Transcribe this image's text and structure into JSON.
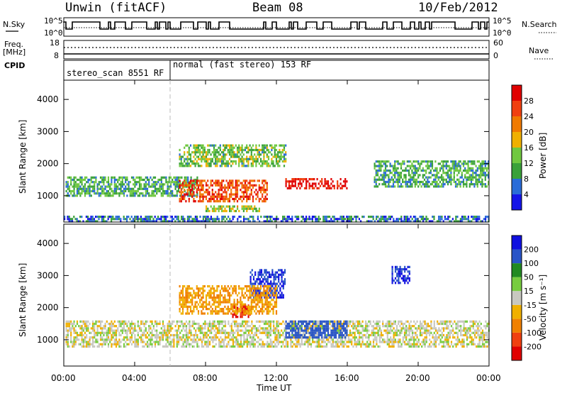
{
  "header": {
    "station": "Unwin (fitACF)",
    "beam": "Beam 08",
    "date": "10/Feb/2012"
  },
  "left_labels": {
    "nsky": "N.Sky",
    "freq": "Freq.",
    "freq_unit": "[MHz]",
    "cpid": "CPID"
  },
  "right_labels": {
    "nsearch": "N.Search",
    "nave": "Nave"
  },
  "cpid_segments": [
    {
      "label": "stereo_scan 8551 RF"
    },
    {
      "label": "normal (fast stereo) 153 RF"
    }
  ],
  "xaxis": {
    "ticks": [
      "00:00",
      "04:00",
      "08:00",
      "12:00",
      "16:00",
      "20:00",
      "00:00"
    ],
    "label": "Time UT"
  },
  "colors": {
    "power_scale": [
      "#1515e8",
      "#2a6cd8",
      "#3aa13a",
      "#70c840",
      "#f0b000",
      "#f07a00",
      "#f04010",
      "#e00000"
    ],
    "velocity_scale": [
      "#1010e0",
      "#2a55c8",
      "#228a22",
      "#78cc40",
      "#c8c8c0",
      "#f0b000",
      "#f08000",
      "#f04010",
      "#e00000"
    ],
    "ground_scatter": "#c0c0b8"
  },
  "chart_data": [
    {
      "type": "line",
      "title": "",
      "series": [
        {
          "name": "N.Sky",
          "range": [
            "10^0",
            "10^5"
          ]
        },
        {
          "name": "N.Search",
          "range": [
            "10^0",
            "10^5"
          ]
        }
      ],
      "left_ticks": [
        "10^5",
        "10^0"
      ],
      "right_ticks": [
        "10^5",
        "10^0"
      ]
    },
    {
      "type": "line",
      "series": [
        {
          "name": "Freq. [MHz]",
          "range": [
            8,
            18
          ],
          "approx_value": 10.5
        },
        {
          "name": "Nave",
          "range": [
            0,
            60
          ],
          "approx_value": 32
        }
      ],
      "left_ticks": [
        "18",
        "8"
      ],
      "right_ticks": [
        "60",
        "0"
      ]
    },
    {
      "type": "heatmap",
      "panel": "power",
      "xlabel": "Time UT",
      "ylabel": "Slant Range [km]",
      "xlim": [
        0,
        24
      ],
      "ylim": [
        180,
        4600
      ],
      "yticks": [
        1000,
        2000,
        3000,
        4000
      ],
      "colorbar": {
        "label": "Power [dB]",
        "ticks": [
          4,
          8,
          12,
          16,
          20,
          24,
          28
        ],
        "range": [
          0,
          30
        ]
      },
      "bands": [
        {
          "t_start": 0.1,
          "t_end": 7.5,
          "range_low": 1000,
          "range_high": 1600,
          "power_db": 10
        },
        {
          "t_start": 6.5,
          "t_end": 11.5,
          "range_low": 850,
          "range_high": 1500,
          "power_db": 24
        },
        {
          "t_start": 12.5,
          "t_end": 16.0,
          "range_low": 1200,
          "range_high": 1550,
          "power_db": 28
        },
        {
          "t_start": 17.5,
          "t_end": 24.0,
          "range_low": 1300,
          "range_high": 2100,
          "power_db": 10
        },
        {
          "t_start": 6.5,
          "t_end": 12.5,
          "range_low": 1900,
          "range_high": 2600,
          "power_db": 12
        },
        {
          "t_start": 8.0,
          "t_end": 11.0,
          "range_low": 500,
          "range_high": 700,
          "power_db": 14
        },
        {
          "t_start": 0.0,
          "t_end": 24.0,
          "range_low": 200,
          "range_high": 380,
          "power_db": 6
        }
      ]
    },
    {
      "type": "heatmap",
      "panel": "velocity",
      "xlabel": "Time UT",
      "ylabel": "Slant Range [km]",
      "xlim": [
        0,
        24
      ],
      "ylim": [
        180,
        4600
      ],
      "yticks": [
        1000,
        2000,
        3000,
        4000
      ],
      "colorbar": {
        "label": "Velocity [m s⁻¹]",
        "ticks": [
          200,
          100,
          50,
          15,
          -15,
          -50,
          -100,
          -200
        ],
        "range": [
          -250,
          250
        ]
      },
      "bands": [
        {
          "t_start": 0.1,
          "t_end": 24.0,
          "range_low": 800,
          "range_high": 1600,
          "velocity": 0
        },
        {
          "t_start": 12.5,
          "t_end": 16.0,
          "range_low": 1100,
          "range_high": 1600,
          "velocity": 150
        },
        {
          "t_start": 9.5,
          "t_end": 10.5,
          "range_low": 1700,
          "range_high": 2100,
          "velocity": -200
        },
        {
          "t_start": 10.5,
          "t_end": 12.5,
          "range_low": 2300,
          "range_high": 3200,
          "velocity": 200
        },
        {
          "t_start": 18.5,
          "t_end": 19.5,
          "range_low": 2800,
          "range_high": 3300,
          "velocity": 200
        },
        {
          "t_start": 6.5,
          "t_end": 12.0,
          "range_low": 1800,
          "range_high": 2700,
          "velocity": -50
        }
      ]
    }
  ]
}
